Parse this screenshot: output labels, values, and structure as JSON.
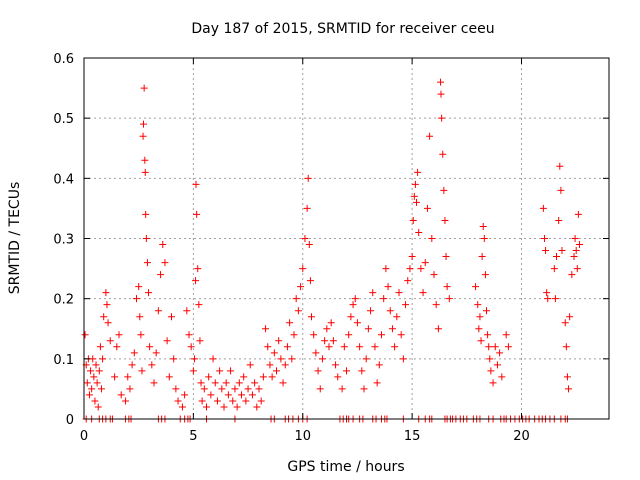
{
  "chart_data": {
    "type": "scatter",
    "title": "Day 187 of 2015, SRMTID for receiver ceeu",
    "xlabel": "GPS time / hours",
    "ylabel": "SRMTID / TECUs",
    "xlim": [
      0,
      24
    ],
    "ylim": [
      0,
      0.6
    ],
    "x_ticks": [
      0,
      5,
      10,
      15,
      20
    ],
    "y_ticks": [
      0,
      0.1,
      0.2,
      0.3,
      0.4,
      0.5,
      0.6
    ],
    "x_tick_labels": [
      "0",
      "5",
      "10",
      "15",
      "20"
    ],
    "y_tick_labels": [
      "0",
      "0.1",
      "0.2",
      "0.3",
      "0.4",
      "0.5",
      "0.6"
    ],
    "grid": true,
    "marker": "plus",
    "color": "#ff0000",
    "series": [
      {
        "name": "SRMTID",
        "points": [
          [
            0.05,
            0.14
          ],
          [
            0.1,
            0.09
          ],
          [
            0.15,
            0.06
          ],
          [
            0.2,
            0.1
          ],
          [
            0.25,
            0.04
          ],
          [
            0.3,
            0.08
          ],
          [
            0.35,
            0.05
          ],
          [
            0.4,
            0.1
          ],
          [
            0.45,
            0.07
          ],
          [
            0.5,
            0.03
          ],
          [
            0.55,
            0.09
          ],
          [
            0.6,
            0.06
          ],
          [
            0.65,
            0.02
          ],
          [
            0.7,
            0.08
          ],
          [
            0.75,
            0.12
          ],
          [
            0.8,
            0.05
          ],
          [
            0.85,
            0.1
          ],
          [
            0.9,
            0.17
          ],
          [
            1.0,
            0.21
          ],
          [
            1.05,
            0.19
          ],
          [
            1.1,
            0.16
          ],
          [
            1.2,
            0.13
          ],
          [
            1.4,
            0.07
          ],
          [
            1.5,
            0.12
          ],
          [
            1.6,
            0.14
          ],
          [
            1.7,
            0.04
          ],
          [
            1.9,
            0.03
          ],
          [
            2.0,
            0.07
          ],
          [
            2.1,
            0.05
          ],
          [
            2.2,
            0.09
          ],
          [
            2.3,
            0.11
          ],
          [
            2.4,
            0.2
          ],
          [
            2.5,
            0.22
          ],
          [
            2.55,
            0.17
          ],
          [
            2.6,
            0.14
          ],
          [
            2.65,
            0.08
          ],
          [
            2.7,
            0.47
          ],
          [
            2.72,
            0.49
          ],
          [
            2.75,
            0.55
          ],
          [
            2.78,
            0.43
          ],
          [
            2.8,
            0.41
          ],
          [
            2.82,
            0.34
          ],
          [
            2.85,
            0.3
          ],
          [
            2.9,
            0.26
          ],
          [
            2.95,
            0.21
          ],
          [
            3.0,
            0.12
          ],
          [
            3.1,
            0.09
          ],
          [
            3.2,
            0.06
          ],
          [
            3.3,
            0.11
          ],
          [
            3.4,
            0.18
          ],
          [
            3.5,
            0.24
          ],
          [
            3.6,
            0.29
          ],
          [
            3.7,
            0.26
          ],
          [
            3.8,
            0.13
          ],
          [
            3.9,
            0.07
          ],
          [
            4.0,
            0.17
          ],
          [
            4.1,
            0.1
          ],
          [
            4.2,
            0.05
          ],
          [
            4.3,
            0.03
          ],
          [
            4.5,
            0.02
          ],
          [
            4.6,
            0.04
          ],
          [
            4.7,
            0.18
          ],
          [
            4.8,
            0.14
          ],
          [
            4.9,
            0.12
          ],
          [
            5.0,
            0.08
          ],
          [
            5.05,
            0.1
          ],
          [
            5.1,
            0.23
          ],
          [
            5.12,
            0.39
          ],
          [
            5.15,
            0.34
          ],
          [
            5.2,
            0.25
          ],
          [
            5.25,
            0.19
          ],
          [
            5.3,
            0.13
          ],
          [
            5.35,
            0.06
          ],
          [
            5.4,
            0.03
          ],
          [
            5.5,
            0.05
          ],
          [
            5.6,
            0.02
          ],
          [
            5.7,
            0.07
          ],
          [
            5.8,
            0.04
          ],
          [
            5.9,
            0.1
          ],
          [
            6.0,
            0.06
          ],
          [
            6.1,
            0.03
          ],
          [
            6.2,
            0.08
          ],
          [
            6.3,
            0.05
          ],
          [
            6.4,
            0.02
          ],
          [
            6.5,
            0.06
          ],
          [
            6.6,
            0.04
          ],
          [
            6.7,
            0.08
          ],
          [
            6.8,
            0.03
          ],
          [
            6.9,
            0.05
          ],
          [
            7.0,
            0.02
          ],
          [
            7.1,
            0.06
          ],
          [
            7.2,
            0.04
          ],
          [
            7.3,
            0.07
          ],
          [
            7.4,
            0.03
          ],
          [
            7.5,
            0.05
          ],
          [
            7.6,
            0.09
          ],
          [
            7.7,
            0.04
          ],
          [
            7.8,
            0.06
          ],
          [
            7.9,
            0.02
          ],
          [
            8.0,
            0.05
          ],
          [
            8.1,
            0.03
          ],
          [
            8.2,
            0.07
          ],
          [
            8.3,
            0.15
          ],
          [
            8.4,
            0.12
          ],
          [
            8.5,
            0.09
          ],
          [
            8.6,
            0.07
          ],
          [
            8.7,
            0.11
          ],
          [
            8.8,
            0.08
          ],
          [
            8.9,
            0.13
          ],
          [
            9.0,
            0.1
          ],
          [
            9.1,
            0.06
          ],
          [
            9.2,
            0.09
          ],
          [
            9.3,
            0.12
          ],
          [
            9.4,
            0.16
          ],
          [
            9.5,
            0.1
          ],
          [
            9.6,
            0.14
          ],
          [
            9.7,
            0.2
          ],
          [
            9.8,
            0.18
          ],
          [
            9.9,
            0.22
          ],
          [
            10.0,
            0.25
          ],
          [
            10.1,
            0.3
          ],
          [
            10.2,
            0.35
          ],
          [
            10.25,
            0.4
          ],
          [
            10.3,
            0.29
          ],
          [
            10.35,
            0.23
          ],
          [
            10.4,
            0.17
          ],
          [
            10.5,
            0.14
          ],
          [
            10.6,
            0.11
          ],
          [
            10.7,
            0.08
          ],
          [
            10.8,
            0.05
          ],
          [
            10.9,
            0.1
          ],
          [
            11.0,
            0.13
          ],
          [
            11.1,
            0.15
          ],
          [
            11.2,
            0.12
          ],
          [
            11.3,
            0.16
          ],
          [
            11.4,
            0.13
          ],
          [
            11.5,
            0.09
          ],
          [
            11.6,
            0.07
          ],
          [
            11.8,
            0.05
          ],
          [
            11.9,
            0.12
          ],
          [
            12.0,
            0.08
          ],
          [
            12.1,
            0.14
          ],
          [
            12.2,
            0.17
          ],
          [
            12.3,
            0.19
          ],
          [
            12.4,
            0.2
          ],
          [
            12.5,
            0.16
          ],
          [
            12.6,
            0.12
          ],
          [
            12.7,
            0.08
          ],
          [
            12.8,
            0.05
          ],
          [
            12.9,
            0.1
          ],
          [
            13.0,
            0.15
          ],
          [
            13.1,
            0.18
          ],
          [
            13.2,
            0.21
          ],
          [
            13.3,
            0.12
          ],
          [
            13.4,
            0.06
          ],
          [
            13.5,
            0.09
          ],
          [
            13.6,
            0.14
          ],
          [
            13.7,
            0.2
          ],
          [
            13.8,
            0.25
          ],
          [
            13.9,
            0.22
          ],
          [
            14.0,
            0.18
          ],
          [
            14.1,
            0.15
          ],
          [
            14.2,
            0.12
          ],
          [
            14.3,
            0.17
          ],
          [
            14.4,
            0.21
          ],
          [
            14.5,
            0.14
          ],
          [
            14.6,
            0.1
          ],
          [
            14.7,
            0.19
          ],
          [
            14.8,
            0.23
          ],
          [
            14.9,
            0.25
          ],
          [
            15.0,
            0.27
          ],
          [
            15.05,
            0.33
          ],
          [
            15.1,
            0.37
          ],
          [
            15.15,
            0.39
          ],
          [
            15.2,
            0.36
          ],
          [
            15.25,
            0.41
          ],
          [
            15.3,
            0.31
          ],
          [
            15.4,
            0.25
          ],
          [
            15.5,
            0.21
          ],
          [
            15.6,
            0.26
          ],
          [
            15.7,
            0.35
          ],
          [
            15.8,
            0.47
          ],
          [
            15.9,
            0.3
          ],
          [
            16.0,
            0.24
          ],
          [
            16.1,
            0.19
          ],
          [
            16.2,
            0.15
          ],
          [
            16.3,
            0.56
          ],
          [
            16.32,
            0.54
          ],
          [
            16.35,
            0.5
          ],
          [
            16.4,
            0.44
          ],
          [
            16.45,
            0.38
          ],
          [
            16.5,
            0.33
          ],
          [
            16.55,
            0.27
          ],
          [
            16.6,
            0.22
          ],
          [
            16.7,
            0.2
          ],
          [
            17.9,
            0.22
          ],
          [
            18.0,
            0.19
          ],
          [
            18.05,
            0.15
          ],
          [
            18.1,
            0.17
          ],
          [
            18.15,
            0.13
          ],
          [
            18.2,
            0.27
          ],
          [
            18.25,
            0.32
          ],
          [
            18.3,
            0.3
          ],
          [
            18.35,
            0.24
          ],
          [
            18.4,
            0.18
          ],
          [
            18.45,
            0.14
          ],
          [
            18.5,
            0.12
          ],
          [
            18.55,
            0.1
          ],
          [
            18.6,
            0.08
          ],
          [
            18.7,
            0.06
          ],
          [
            18.8,
            0.12
          ],
          [
            18.9,
            0.09
          ],
          [
            19.0,
            0.11
          ],
          [
            19.1,
            0.07
          ],
          [
            19.3,
            0.14
          ],
          [
            19.4,
            0.12
          ],
          [
            21.0,
            0.35
          ],
          [
            21.05,
            0.3
          ],
          [
            21.1,
            0.28
          ],
          [
            21.15,
            0.21
          ],
          [
            21.2,
            0.2
          ],
          [
            21.5,
            0.25
          ],
          [
            21.55,
            0.2
          ],
          [
            21.6,
            0.27
          ],
          [
            21.7,
            0.33
          ],
          [
            21.75,
            0.42
          ],
          [
            21.8,
            0.38
          ],
          [
            21.85,
            0.28
          ],
          [
            22.0,
            0.16
          ],
          [
            22.05,
            0.12
          ],
          [
            22.1,
            0.07
          ],
          [
            22.15,
            0.05
          ],
          [
            22.2,
            0.17
          ],
          [
            22.3,
            0.24
          ],
          [
            22.4,
            0.27
          ],
          [
            22.45,
            0.3
          ],
          [
            22.5,
            0.28
          ],
          [
            22.55,
            0.25
          ],
          [
            22.6,
            0.34
          ],
          [
            22.65,
            0.29
          ]
        ],
        "zero_points": [
          0.1,
          0.35,
          0.7,
          0.85,
          1.0,
          1.2,
          1.3,
          1.9,
          2.05,
          2.15,
          3.4,
          3.55,
          3.7,
          4.4,
          4.6,
          4.75,
          4.85,
          5.6,
          6.9,
          8.55,
          8.7,
          9.2,
          9.35,
          9.55,
          9.8,
          10.0,
          10.2,
          11.7,
          11.85,
          12.0,
          12.1,
          12.3,
          12.6,
          12.75,
          13.2,
          13.35,
          13.6,
          13.75,
          13.85,
          14.6,
          15.3,
          15.6,
          15.8,
          15.9,
          16.5,
          16.6,
          16.75,
          16.85,
          17.0,
          17.2,
          17.35,
          17.5,
          17.8,
          17.95,
          18.1,
          18.5,
          18.7,
          19.05,
          19.2,
          19.3,
          19.5,
          19.7,
          19.9,
          20.05,
          20.2,
          20.35,
          20.6,
          20.8,
          20.95,
          21.1,
          21.3,
          21.5,
          21.8,
          22.0,
          22.1
        ]
      }
    ]
  }
}
